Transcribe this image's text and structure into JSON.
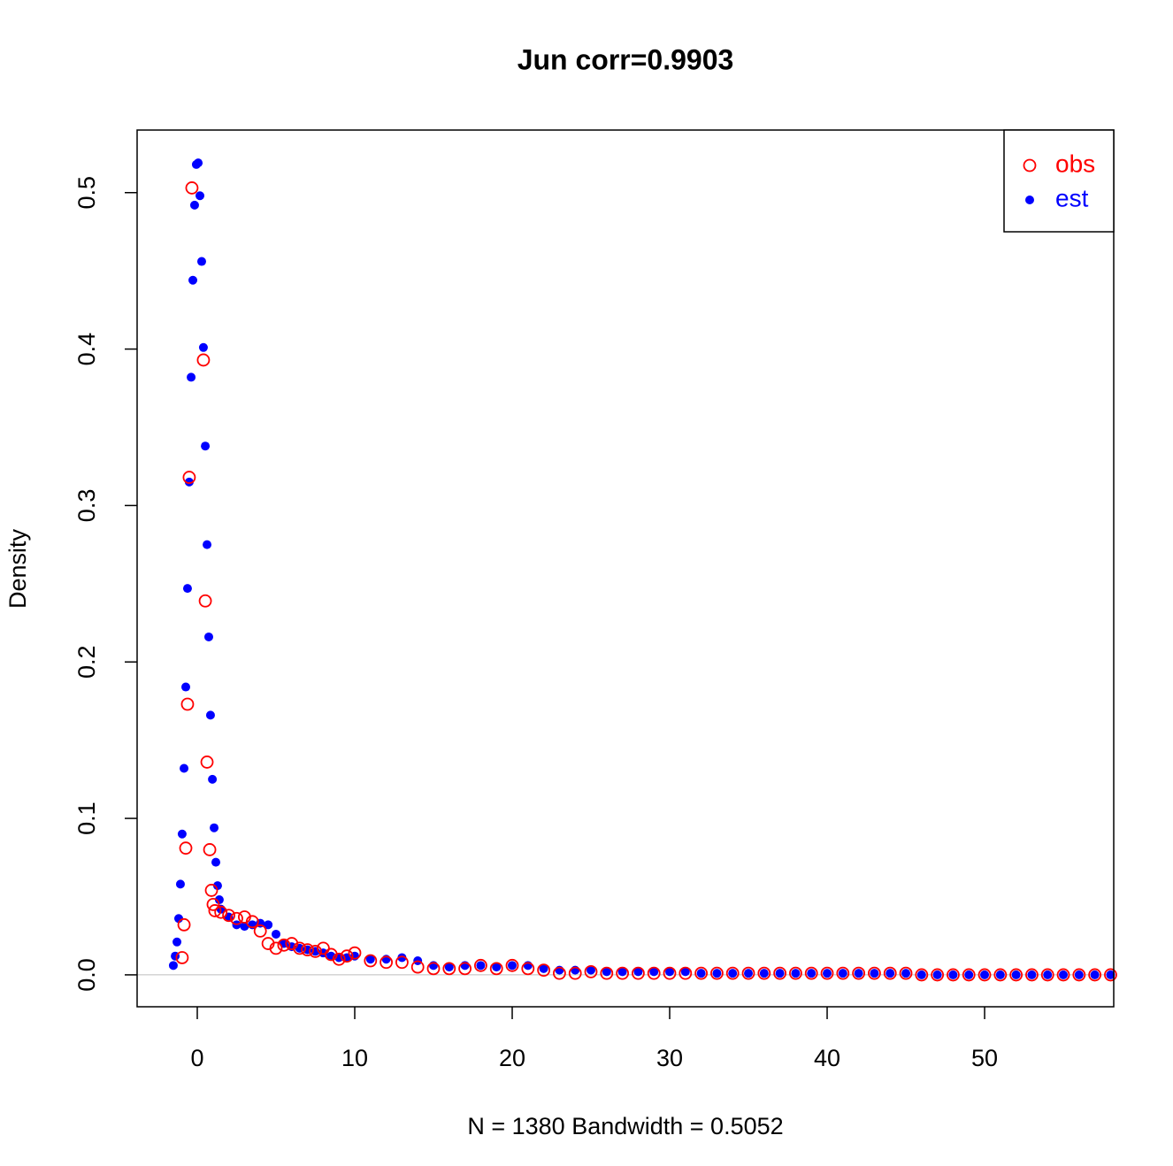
{
  "chart_data": {
    "type": "scatter",
    "title": "Jun corr=0.9903",
    "x_label": "N = 1380   Bandwidth = 0.5052",
    "y_label": "Density",
    "xlim": [
      -3.82,
      58.2
    ],
    "ylim": [
      -0.0204,
      0.54
    ],
    "xticks": [
      0,
      10,
      20,
      30,
      40,
      50
    ],
    "yticks": [
      {
        "value": 0,
        "label": "0.0"
      },
      0.1,
      0.2,
      0.3,
      0.4,
      0.5
    ],
    "zero_line": true,
    "legend": "topright",
    "series": [
      {
        "name": "obs",
        "color": "#ff0000",
        "marker": "open",
        "x": [
          -0.96,
          -0.84,
          -0.73,
          -0.62,
          -0.51,
          -0.34,
          0.39,
          0.51,
          0.62,
          0.79,
          0.9,
          1.01,
          1.12,
          1.5,
          2,
          2.5,
          3,
          3.5,
          4,
          4.5,
          5,
          5.5,
          6,
          6.5,
          7,
          7.5,
          8,
          8.5,
          9,
          9.5,
          10,
          11,
          12,
          13,
          14,
          15,
          16,
          17,
          18,
          19,
          20,
          21,
          22,
          23,
          24,
          25,
          26,
          27,
          28,
          29,
          30,
          31,
          32,
          33,
          34,
          35,
          36,
          37,
          38,
          39,
          40,
          41,
          42,
          43,
          44,
          45,
          46,
          47,
          48,
          49,
          50,
          51,
          52,
          53,
          54,
          55,
          56,
          57,
          58
        ],
        "values": [
          0.011,
          0.032,
          0.081,
          0.173,
          0.318,
          0.503,
          0.393,
          0.239,
          0.136,
          0.08,
          0.054,
          0.045,
          0.041,
          0.04,
          0.038,
          0.036,
          0.037,
          0.034,
          0.028,
          0.02,
          0.017,
          0.019,
          0.02,
          0.017,
          0.016,
          0.015,
          0.017,
          0.013,
          0.01,
          0.012,
          0.014,
          0.009,
          0.008,
          0.008,
          0.005,
          0.004,
          0.004,
          0.004,
          0.006,
          0.004,
          0.006,
          0.004,
          0.003,
          0.001,
          0.001,
          0.002,
          0.001,
          0.001,
          0.001,
          0.001,
          0.001,
          0.001,
          0.001,
          0.001,
          0.001,
          0.001,
          0.001,
          0.001,
          0.001,
          0.001,
          0.001,
          0.001,
          0.001,
          0.001,
          0.001,
          0.001,
          0,
          0,
          0,
          0,
          0,
          0,
          0,
          0,
          0,
          0,
          0,
          0,
          0
        ]
      },
      {
        "name": "est",
        "color": "#0000ff",
        "marker": "filled",
        "x": [
          -1.52,
          -1.4,
          -1.29,
          -1.18,
          -1.07,
          -0.96,
          -0.84,
          -0.73,
          -0.62,
          -0.51,
          -0.39,
          -0.28,
          -0.17,
          -0.06,
          0.06,
          0.17,
          0.28,
          0.39,
          0.51,
          0.62,
          0.73,
          0.84,
          0.96,
          1.07,
          1.18,
          1.29,
          1.4,
          1.5,
          2,
          2.5,
          3,
          3.5,
          4,
          4.5,
          5,
          5.5,
          6,
          6.5,
          7,
          7.5,
          8,
          8.5,
          9,
          9.5,
          10,
          11,
          12,
          13,
          14,
          15,
          16,
          17,
          18,
          19,
          20,
          21,
          22,
          23,
          24,
          25,
          26,
          27,
          28,
          29,
          30,
          31,
          32,
          33,
          34,
          35,
          36,
          37,
          38,
          39,
          40,
          41,
          42,
          43,
          44,
          45,
          46,
          47,
          48,
          49,
          50,
          51,
          52,
          53,
          54,
          55,
          56,
          57,
          58
        ],
        "values": [
          0.006,
          0.012,
          0.021,
          0.036,
          0.058,
          0.09,
          0.132,
          0.184,
          0.247,
          0.315,
          0.382,
          0.444,
          0.492,
          0.518,
          0.519,
          0.498,
          0.456,
          0.401,
          0.338,
          0.275,
          0.216,
          0.166,
          0.125,
          0.094,
          0.072,
          0.057,
          0.048,
          0.042,
          0.037,
          0.032,
          0.031,
          0.032,
          0.033,
          0.032,
          0.026,
          0.02,
          0.018,
          0.017,
          0.016,
          0.015,
          0.014,
          0.012,
          0.011,
          0.011,
          0.012,
          0.01,
          0.01,
          0.011,
          0.009,
          0.006,
          0.005,
          0.006,
          0.006,
          0.005,
          0.006,
          0.006,
          0.004,
          0.003,
          0.003,
          0.003,
          0.002,
          0.002,
          0.002,
          0.002,
          0.002,
          0.002,
          0.001,
          0.001,
          0.001,
          0.001,
          0.001,
          0.001,
          0.001,
          0.001,
          0.001,
          0.001,
          0.001,
          0.001,
          0.001,
          0.001,
          0,
          0,
          0,
          0,
          0,
          0,
          0,
          0,
          0,
          0,
          0,
          0,
          0
        ]
      }
    ]
  }
}
